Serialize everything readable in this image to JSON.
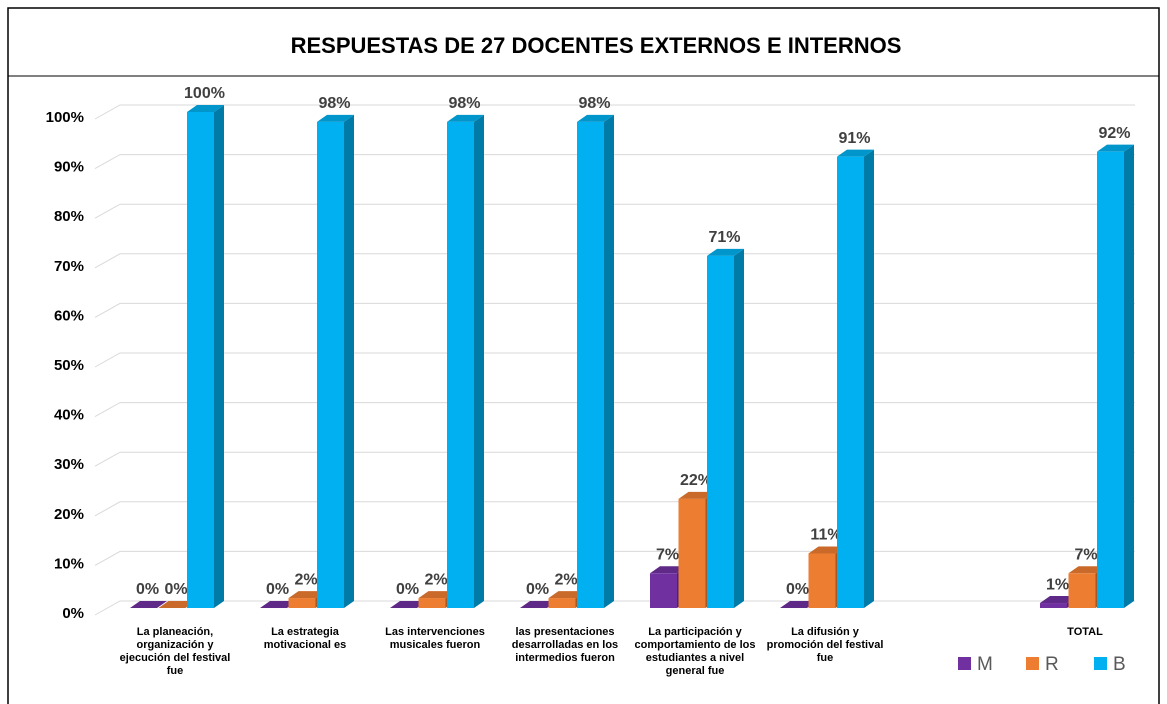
{
  "chart_data": {
    "type": "bar3d",
    "title": "RESPUESTAS DE 27 DOCENTES EXTERNOS E INTERNOS",
    "categories": [
      "La planeación, organización y ejecución del festival fue",
      "La estrategia motivacional es",
      "Las intervenciones musicales fueron",
      "las presentaciones desarrolladas en los intermedios fueron",
      "La participación y comportamiento de los estudiantes a nivel general fue",
      "La difusión y promoción del festival fue",
      null,
      "TOTAL"
    ],
    "series": [
      {
        "name": "M",
        "color": "#7030a0",
        "values": [
          0,
          0,
          0,
          0,
          7,
          0,
          null,
          1
        ],
        "value_labels": [
          "0%",
          "0%",
          "0%",
          "0%",
          "7%",
          "0%",
          null,
          "1%"
        ]
      },
      {
        "name": "R",
        "color": "#ed7d31",
        "values": [
          0,
          2,
          2,
          2,
          22,
          11,
          null,
          7
        ],
        "value_labels": [
          "0%",
          "2%",
          "2%",
          "2%",
          "22%",
          "11%",
          null,
          "7%"
        ]
      },
      {
        "name": "B",
        "color": "#00b0f0",
        "values": [
          100,
          98,
          98,
          98,
          71,
          91,
          null,
          92
        ],
        "value_labels": [
          "100%",
          "98%",
          "98%",
          "98%",
          "71%",
          "91%",
          null,
          "92%"
        ]
      }
    ],
    "ylim": [
      0,
      100
    ],
    "yticks": [
      {
        "value": 0,
        "label": "0%"
      },
      {
        "value": 10,
        "label": "10%"
      },
      {
        "value": 20,
        "label": "20%"
      },
      {
        "value": 30,
        "label": "30%"
      },
      {
        "value": 40,
        "label": "40%"
      },
      {
        "value": 50,
        "label": "50%"
      },
      {
        "value": 60,
        "label": "60%"
      },
      {
        "value": 70,
        "label": "70%"
      },
      {
        "value": 80,
        "label": "80%"
      },
      {
        "value": 90,
        "label": "90%"
      },
      {
        "value": 100,
        "label": "100%"
      }
    ],
    "grid": true,
    "legend": "bottom-right"
  }
}
